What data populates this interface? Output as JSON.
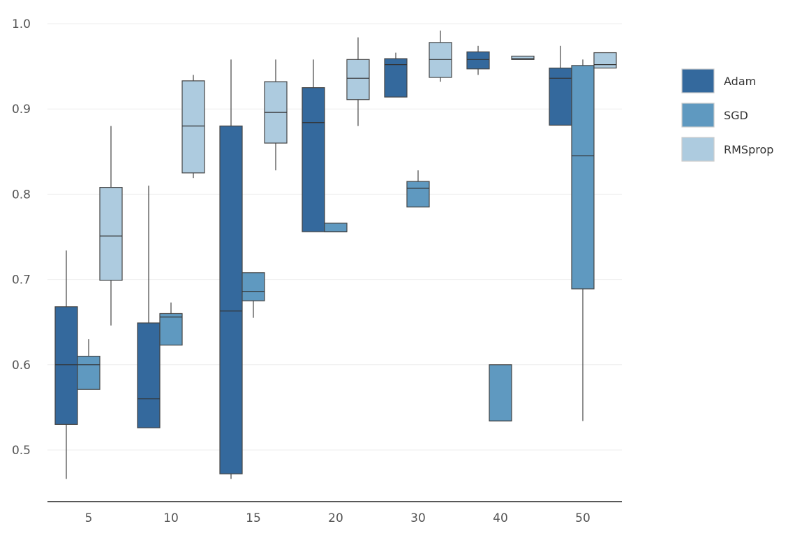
{
  "chart_data": {
    "type": "boxplot",
    "categories": [
      "5",
      "10",
      "15",
      "20",
      "30",
      "40",
      "50"
    ],
    "yticks": [
      "0.5",
      "0.6",
      "0.7",
      "0.8",
      "0.9",
      "1.0"
    ],
    "ylim": [
      0.44,
      1.0
    ],
    "grid": "horizontal",
    "legend_position": "right",
    "colors": {
      "Adam": "#34699d",
      "SGD": "#5f99c0",
      "RMSprop": "#adcbdf",
      "grid": "#eeeeee",
      "axis": "#222222",
      "edge": "#444444"
    },
    "series": [
      {
        "name": "Adam",
        "boxes": [
          {
            "category": "5",
            "whisker_low": 0.466,
            "q1": 0.53,
            "median": 0.6,
            "q3": 0.668,
            "whisker_high": 0.734
          },
          {
            "category": "10",
            "whisker_low": 0.526,
            "q1": 0.526,
            "median": 0.56,
            "q3": 0.649,
            "whisker_high": 0.81
          },
          {
            "category": "15",
            "whisker_low": 0.466,
            "q1": 0.472,
            "median": 0.663,
            "q3": 0.88,
            "whisker_high": 0.958
          },
          {
            "category": "20",
            "whisker_low": 0.756,
            "q1": 0.756,
            "median": 0.884,
            "q3": 0.925,
            "whisker_high": 0.958
          },
          {
            "category": "30",
            "whisker_low": 0.914,
            "q1": 0.914,
            "median": 0.952,
            "q3": 0.959,
            "whisker_high": 0.966
          },
          {
            "category": "40",
            "whisker_low": 0.94,
            "q1": 0.947,
            "median": 0.958,
            "q3": 0.967,
            "whisker_high": 0.974
          },
          {
            "category": "50",
            "whisker_low": 0.881,
            "q1": 0.881,
            "median": 0.936,
            "q3": 0.948,
            "whisker_high": 0.974
          }
        ]
      },
      {
        "name": "SGD",
        "boxes": [
          {
            "category": "5",
            "whisker_low": 0.571,
            "q1": 0.571,
            "median": 0.6,
            "q3": 0.61,
            "whisker_high": 0.63
          },
          {
            "category": "10",
            "whisker_low": 0.623,
            "q1": 0.623,
            "median": 0.656,
            "q3": 0.66,
            "whisker_high": 0.673
          },
          {
            "category": "15",
            "whisker_low": 0.655,
            "q1": 0.675,
            "median": 0.686,
            "q3": 0.708,
            "whisker_high": 0.708
          },
          {
            "category": "20",
            "whisker_low": 0.756,
            "q1": 0.756,
            "median": 0.756,
            "q3": 0.766,
            "whisker_high": 0.766
          },
          {
            "category": "30",
            "whisker_low": 0.785,
            "q1": 0.785,
            "median": 0.807,
            "q3": 0.815,
            "whisker_high": 0.828
          },
          {
            "category": "40",
            "whisker_low": 0.534,
            "q1": 0.534,
            "median": 0.534,
            "q3": 0.6,
            "whisker_high": 0.6
          },
          {
            "category": "50",
            "whisker_low": 0.534,
            "q1": 0.689,
            "median": 0.845,
            "q3": 0.951,
            "whisker_high": 0.958
          }
        ]
      },
      {
        "name": "RMSprop",
        "boxes": [
          {
            "category": "5",
            "whisker_low": 0.646,
            "q1": 0.699,
            "median": 0.751,
            "q3": 0.808,
            "whisker_high": 0.88
          },
          {
            "category": "10",
            "whisker_low": 0.819,
            "q1": 0.825,
            "median": 0.88,
            "q3": 0.933,
            "whisker_high": 0.94
          },
          {
            "category": "15",
            "whisker_low": 0.828,
            "q1": 0.86,
            "median": 0.896,
            "q3": 0.932,
            "whisker_high": 0.958
          },
          {
            "category": "20",
            "whisker_low": 0.88,
            "q1": 0.911,
            "median": 0.936,
            "q3": 0.958,
            "whisker_high": 0.984
          },
          {
            "category": "30",
            "whisker_low": 0.932,
            "q1": 0.937,
            "median": 0.958,
            "q3": 0.978,
            "whisker_high": 0.992
          },
          {
            "category": "40",
            "whisker_low": 0.958,
            "q1": 0.958,
            "median": 0.959,
            "q3": 0.962,
            "whisker_high": 0.962
          },
          {
            "category": "50",
            "whisker_low": 0.948,
            "q1": 0.948,
            "median": 0.952,
            "q3": 0.966,
            "whisker_high": 0.966
          }
        ]
      }
    ]
  }
}
